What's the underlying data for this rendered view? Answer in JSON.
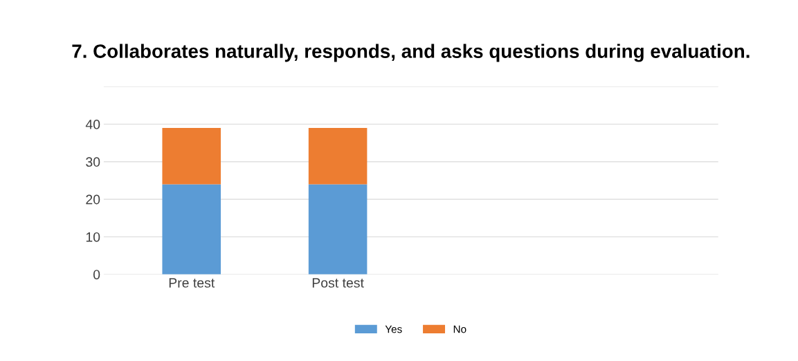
{
  "chart_data": {
    "type": "bar",
    "title": "7. Collaborates naturally, responds, and asks questions during evaluation.",
    "categories": [
      "Pre test",
      "Post test",
      null,
      null
    ],
    "series": [
      {
        "name": "Yes",
        "color": "#5b9bd5",
        "values": [
          24,
          24,
          0,
          0
        ]
      },
      {
        "name": "No",
        "color": "#ed7d31",
        "values": [
          15,
          15,
          0,
          0
        ]
      }
    ],
    "stacked": true,
    "ylim": [
      0,
      50
    ],
    "yticks": [
      0,
      10,
      20,
      30,
      40,
      {
        "value": 50,
        "label": null
      }
    ],
    "grid": "y",
    "legend": "bottom"
  }
}
